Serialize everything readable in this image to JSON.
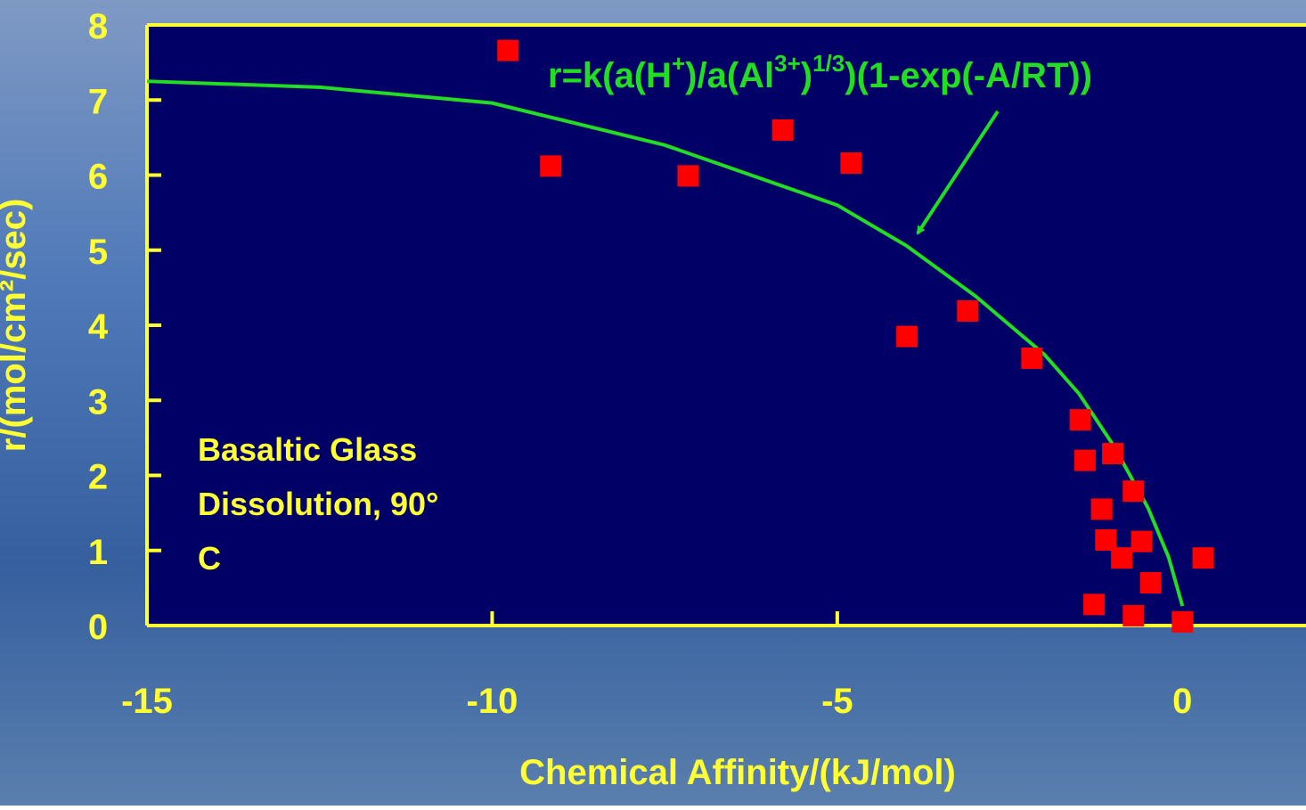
{
  "chart_data": {
    "type": "scatter",
    "x_label": "Chemical Affinity/(kJ/mol)",
    "y_label": "r/(mol/cm²/sec)",
    "equation_parts": [
      "r=k(a(H",
      "+",
      ")/a(Al",
      "3+",
      ")",
      "1/3",
      ")(1-exp(-A/RT))"
    ],
    "annotation_lines": [
      "Basaltic Glass",
      "Dissolution, 90°",
      "C"
    ],
    "xlim": [
      -15,
      1.79
    ],
    "ylim": [
      0,
      8
    ],
    "xticks": [
      -15,
      -10,
      -5,
      0
    ],
    "yticks": [
      0,
      1,
      2,
      3,
      4,
      5,
      6,
      7,
      8
    ],
    "points": {
      "color": "#ff0000",
      "x": [
        -9.77,
        -9.15,
        -7.16,
        -5.79,
        -4.8,
        -3.99,
        -3.11,
        -2.18,
        -1.48,
        -1.41,
        -1.01,
        -0.71,
        -1.17,
        -1.11,
        -0.59,
        -0.88,
        -0.46,
        -1.28,
        -0.71,
        0.0,
        0.3
      ],
      "y": [
        7.66,
        6.12,
        5.99,
        6.6,
        6.16,
        3.85,
        4.19,
        3.56,
        2.74,
        2.2,
        2.29,
        1.79,
        1.55,
        1.14,
        1.12,
        0.9,
        0.57,
        0.28,
        0.13,
        0.05,
        0.9
      ]
    },
    "fit": {
      "color": "#22dd22",
      "x": [
        -15,
        -12.5,
        -10,
        -7.5,
        -5,
        -4,
        -3,
        -2,
        -1.5,
        -1,
        -0.5,
        -0.2,
        0
      ],
      "y": [
        7.25,
        7.17,
        6.96,
        6.4,
        5.6,
        5.06,
        4.39,
        3.61,
        3.09,
        2.4,
        1.57,
        0.91,
        0.26
      ]
    }
  }
}
